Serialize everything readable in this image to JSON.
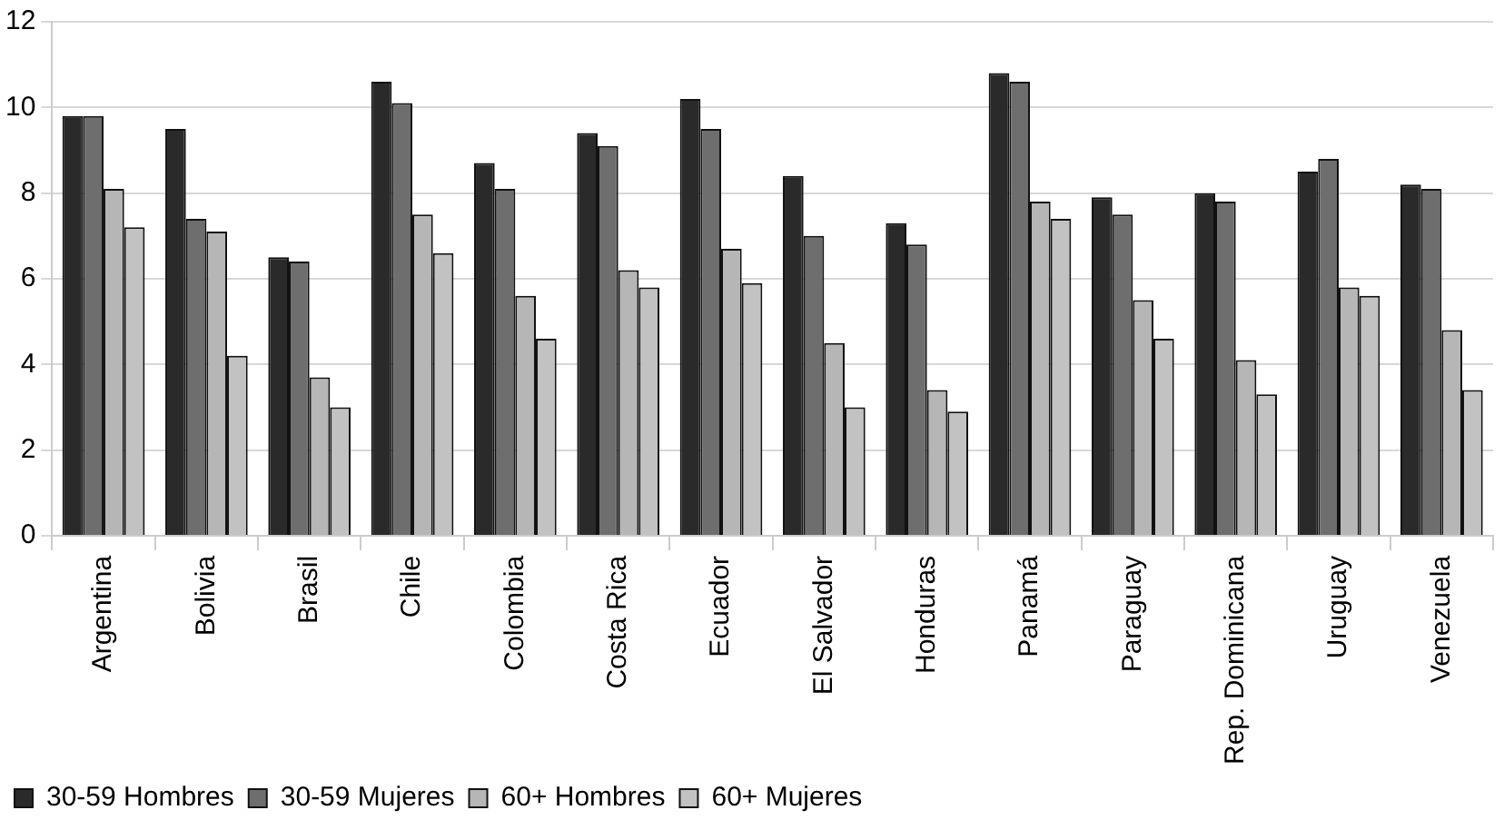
{
  "chart_data": {
    "type": "bar",
    "categories": [
      "Argentina",
      "Bolivia",
      "Brasil",
      "Chile",
      "Colombia",
      "Costa Rica",
      "Ecuador",
      "El Salvador",
      "Honduras",
      "Panamá",
      "Paraguay",
      "Rep. Dominicana",
      "Uruguay",
      "Venezuela"
    ],
    "series": [
      {
        "name": "30-59 Hombres",
        "color": "#2a2a2a",
        "values": [
          9.8,
          9.5,
          6.5,
          10.6,
          8.7,
          9.4,
          10.2,
          8.4,
          7.3,
          10.8,
          7.9,
          8.0,
          8.5,
          8.2
        ]
      },
      {
        "name": "30-59 Mujeres",
        "color": "#6e6e6e",
        "values": [
          9.8,
          7.4,
          6.4,
          10.1,
          8.1,
          9.1,
          9.5,
          7.0,
          6.8,
          10.6,
          7.5,
          7.8,
          8.8,
          8.1
        ]
      },
      {
        "name": "60+ Hombres",
        "color": "#b6b6b6",
        "values": [
          8.1,
          7.1,
          3.7,
          7.5,
          5.6,
          6.2,
          6.7,
          4.5,
          3.4,
          7.8,
          5.5,
          4.1,
          5.8,
          4.8
        ]
      },
      {
        "name": "60+ Mujeres",
        "color": "#c2c2c2",
        "values": [
          7.2,
          4.2,
          3.0,
          6.6,
          4.6,
          5.8,
          5.9,
          3.0,
          2.9,
          7.4,
          4.6,
          3.3,
          5.6,
          3.4
        ]
      }
    ],
    "ylim": [
      0,
      12
    ],
    "yticks": [
      0,
      2,
      4,
      6,
      8,
      10,
      12
    ],
    "grid": "y",
    "legend": "bottom"
  }
}
